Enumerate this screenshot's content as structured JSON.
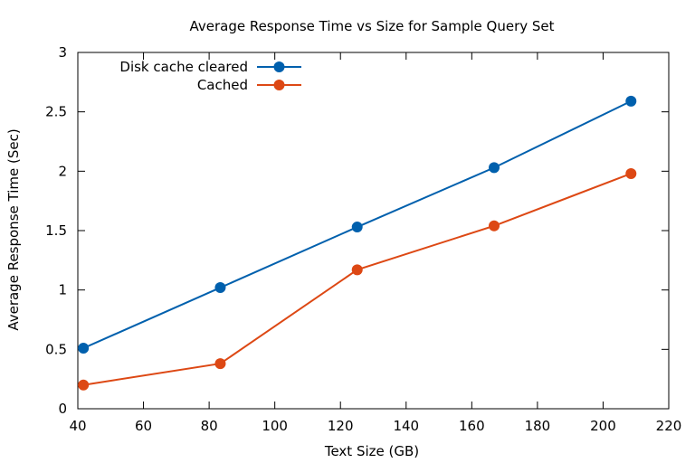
{
  "chart_data": {
    "type": "line",
    "title": "Average Response Time vs Size for Sample Query Set",
    "xlabel": "Text Size (GB)",
    "ylabel": "Average Response Time (Sec)",
    "xlim": [
      40,
      220
    ],
    "ylim": [
      0,
      3
    ],
    "xticks": [
      40,
      60,
      80,
      100,
      120,
      140,
      160,
      180,
      200,
      220
    ],
    "yticks": [
      0,
      0.5,
      1,
      1.5,
      2,
      2.5,
      3
    ],
    "xtick_labels": [
      "40",
      "60",
      "80",
      "100",
      "120",
      "140",
      "160",
      "180",
      "200",
      "220"
    ],
    "ytick_labels": [
      "0",
      "0.5",
      "1",
      "1.5",
      "2",
      "2.5",
      "3"
    ],
    "grid": false,
    "legend_position": "top-left",
    "series": [
      {
        "name": "Disk cache cleared",
        "color": "#0060ad",
        "x": [
          41.7,
          83.4,
          125.1,
          166.8,
          208.5
        ],
        "y": [
          0.51,
          1.02,
          1.53,
          2.03,
          2.59
        ]
      },
      {
        "name": "Cached",
        "color": "#dd4814",
        "x": [
          41.7,
          83.4,
          125.1,
          166.8,
          208.5
        ],
        "y": [
          0.2,
          0.38,
          1.17,
          1.54,
          1.98
        ]
      }
    ]
  }
}
